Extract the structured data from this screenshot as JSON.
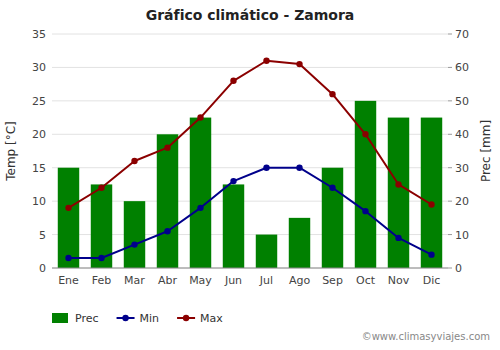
{
  "chart_data": {
    "type": "bar",
    "title": "Gráfico climático - Zamora",
    "categories": [
      "Ene",
      "Feb",
      "Mar",
      "Abr",
      "May",
      "Jun",
      "Jul",
      "Ago",
      "Sep",
      "Oct",
      "Nov",
      "Dic"
    ],
    "series": [
      {
        "name": "Prec",
        "type": "bar",
        "color": "#008000",
        "axis": "y2",
        "values": [
          30,
          25,
          20,
          40,
          45,
          25,
          10,
          15,
          30,
          50,
          45,
          45
        ]
      },
      {
        "name": "Min",
        "type": "line",
        "color": "#00008B",
        "marker": "circle",
        "values": [
          1.5,
          1.5,
          3.5,
          5.5,
          9,
          13,
          15,
          15,
          12,
          8.5,
          4.5,
          2
        ]
      },
      {
        "name": "Max",
        "type": "line",
        "color": "#8B0000",
        "marker": "circle",
        "values": [
          9,
          12,
          16,
          18,
          22.5,
          28,
          31,
          30.5,
          26,
          20,
          12.5,
          9.5
        ]
      }
    ],
    "ylabel": "Temp [°C]",
    "y2label": "Prec [mm]",
    "ylim": [
      0,
      35
    ],
    "yticks": [
      0,
      5,
      10,
      15,
      20,
      25,
      30,
      35
    ],
    "y2lim": [
      0,
      70
    ],
    "y2ticks": [
      0,
      10,
      20,
      30,
      40,
      50,
      60,
      70
    ],
    "grid": true,
    "legend": "bottom",
    "annotations": [
      "©www.climasyviajes.com"
    ]
  }
}
